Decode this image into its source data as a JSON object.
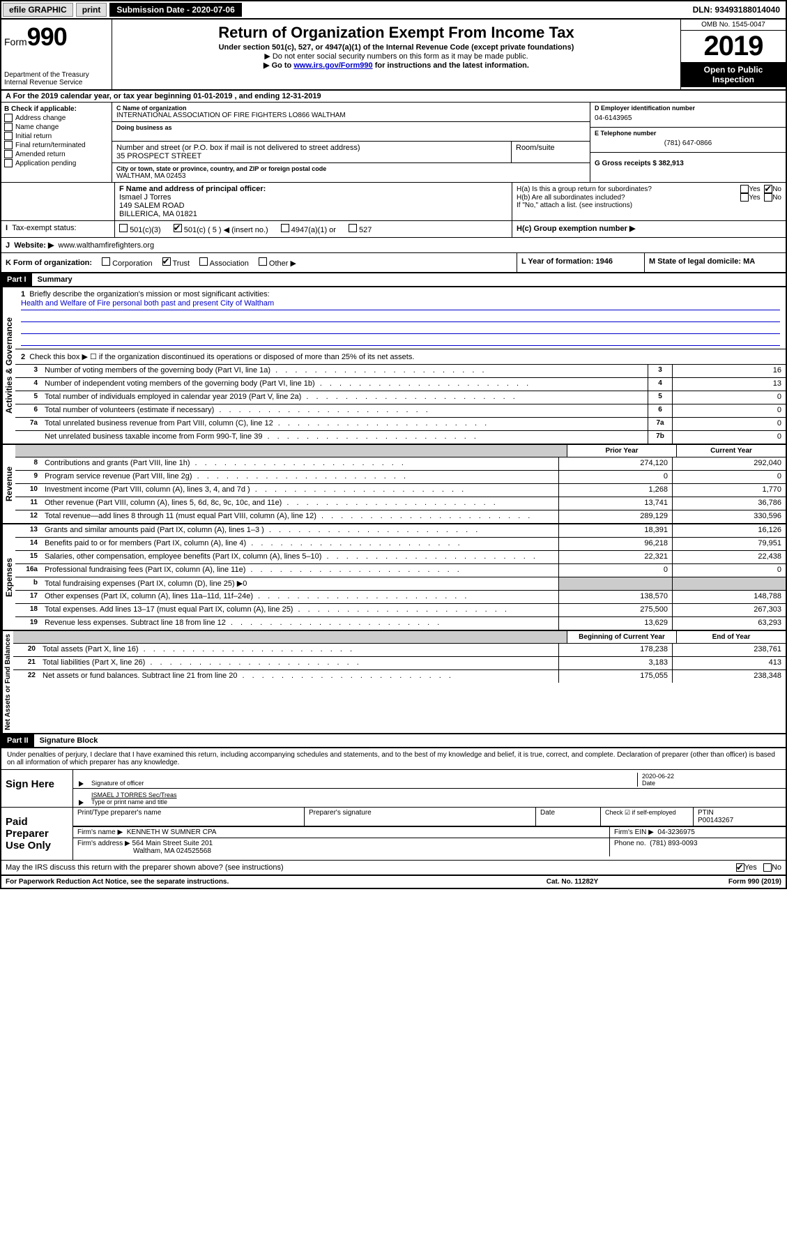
{
  "topbar": {
    "efile": "efile GRAPHIC",
    "print": "print",
    "sub_label": "Submission Date - 2020-07-06",
    "dln": "DLN: 93493188014040"
  },
  "header": {
    "form_prefix": "Form",
    "form_num": "990",
    "dept": "Department of the Treasury",
    "irs": "Internal Revenue Service",
    "title": "Return of Organization Exempt From Income Tax",
    "subtitle": "Under section 501(c), 527, or 4947(a)(1) of the Internal Revenue Code (except private foundations)",
    "line1": "▶ Do not enter social security numbers on this form as it may be made public.",
    "line2_pre": "▶ Go to ",
    "line2_link": "www.irs.gov/Form990",
    "line2_post": " for instructions and the latest information.",
    "omb": "OMB No. 1545-0047",
    "year": "2019",
    "open": "Open to Public Inspection"
  },
  "section_a": {
    "a_text": "A For the 2019 calendar year, or tax year beginning 01-01-2019    , and ending 12-31-2019",
    "b_label": "B Check if applicable:",
    "b_items": [
      "Address change",
      "Name change",
      "Initial return",
      "Final return/terminated",
      "Amended return",
      "Application pending"
    ],
    "c_name_label": "C Name of organization",
    "c_name": "INTERNATIONAL ASSOCIATION OF FIRE FIGHTERS LO866 WALTHAM",
    "dba_label": "Doing business as",
    "addr_label": "Number and street (or P.O. box if mail is not delivered to street address)",
    "addr": "35 PROSPECT STREET",
    "room_label": "Room/suite",
    "city_label": "City or town, state or province, country, and ZIP or foreign postal code",
    "city": "WALTHAM, MA  02453",
    "d_label": "D Employer identification number",
    "d_ein": "04-6143965",
    "e_label": "E Telephone number",
    "e_phone": "(781) 647-0866",
    "g_label": "G Gross receipts $ 382,913",
    "f_label": "F  Name and address of principal officer:",
    "f_name": "Ismael J Torres",
    "f_addr1": "149 SALEM ROAD",
    "f_addr2": "BILLERICA, MA  01821",
    "ha": "H(a)  Is this a group return for subordinates?",
    "hb": "H(b)  Are all subordinates included?",
    "hb_note": "If \"No,\" attach a list. (see instructions)",
    "hc": "H(c)  Group exemption number ▶",
    "yes": "Yes",
    "no": "No",
    "tax_exempt": "Tax-exempt status:",
    "s501c3": "501(c)(3)",
    "s501c": "501(c) ( 5 ) ◀ (insert no.)",
    "s4947": "4947(a)(1) or",
    "s527": "527",
    "website_label": "Website: ▶",
    "website": "www.walthamfirefighters.org",
    "k_label": "K Form of organization:",
    "k_corp": "Corporation",
    "k_trust": "Trust",
    "k_assoc": "Association",
    "k_other": "Other ▶",
    "l_label": "L Year of formation: 1946",
    "m_label": "M State of legal domicile: MA"
  },
  "part1": {
    "header": "Part I",
    "title": "Summary",
    "q1_label": "1",
    "q1": "Briefly describe the organization's mission or most significant activities:",
    "mission": "Health and Welfare of Fire personal both past and present City of Waltham",
    "q2_label": "2",
    "q2": "Check this box ▶ ☐  if the organization discontinued its operations or disposed of more than 25% of its net assets.",
    "gov_label": "Activities & Governance",
    "rev_label": "Revenue",
    "exp_label": "Expenses",
    "net_label": "Net Assets or Fund Balances",
    "prior": "Prior Year",
    "current": "Current Year",
    "begin": "Beginning of Current Year",
    "end": "End of Year",
    "rows_gov": [
      {
        "n": "3",
        "d": "Number of voting members of the governing body (Part VI, line 1a)",
        "nc": "3",
        "v": "16"
      },
      {
        "n": "4",
        "d": "Number of independent voting members of the governing body (Part VI, line 1b)",
        "nc": "4",
        "v": "13"
      },
      {
        "n": "5",
        "d": "Total number of individuals employed in calendar year 2019 (Part V, line 2a)",
        "nc": "5",
        "v": "0"
      },
      {
        "n": "6",
        "d": "Total number of volunteers (estimate if necessary)",
        "nc": "6",
        "v": "0"
      },
      {
        "n": "7a",
        "d": "Total unrelated business revenue from Part VIII, column (C), line 12",
        "nc": "7a",
        "v": "0"
      },
      {
        "n": "",
        "d": "Net unrelated business taxable income from Form 990-T, line 39",
        "nc": "7b",
        "v": "0"
      }
    ],
    "rows_rev": [
      {
        "n": "8",
        "d": "Contributions and grants (Part VIII, line 1h)",
        "p": "274,120",
        "c": "292,040"
      },
      {
        "n": "9",
        "d": "Program service revenue (Part VIII, line 2g)",
        "p": "0",
        "c": "0"
      },
      {
        "n": "10",
        "d": "Investment income (Part VIII, column (A), lines 3, 4, and 7d )",
        "p": "1,268",
        "c": "1,770"
      },
      {
        "n": "11",
        "d": "Other revenue (Part VIII, column (A), lines 5, 6d, 8c, 9c, 10c, and 11e)",
        "p": "13,741",
        "c": "36,786"
      },
      {
        "n": "12",
        "d": "Total revenue—add lines 8 through 11 (must equal Part VIII, column (A), line 12)",
        "p": "289,129",
        "c": "330,596"
      }
    ],
    "rows_exp": [
      {
        "n": "13",
        "d": "Grants and similar amounts paid (Part IX, column (A), lines 1–3 )",
        "p": "18,391",
        "c": "16,126"
      },
      {
        "n": "14",
        "d": "Benefits paid to or for members (Part IX, column (A), line 4)",
        "p": "96,218",
        "c": "79,951"
      },
      {
        "n": "15",
        "d": "Salaries, other compensation, employee benefits (Part IX, column (A), lines 5–10)",
        "p": "22,321",
        "c": "22,438"
      },
      {
        "n": "16a",
        "d": "Professional fundraising fees (Part IX, column (A), line 11e)",
        "p": "0",
        "c": "0"
      },
      {
        "n": "b",
        "d": "Total fundraising expenses (Part IX, column (D), line 25) ▶0",
        "p": "",
        "c": "",
        "shaded": true
      },
      {
        "n": "17",
        "d": "Other expenses (Part IX, column (A), lines 11a–11d, 11f–24e)",
        "p": "138,570",
        "c": "148,788"
      },
      {
        "n": "18",
        "d": "Total expenses. Add lines 13–17 (must equal Part IX, column (A), line 25)",
        "p": "275,500",
        "c": "267,303"
      },
      {
        "n": "19",
        "d": "Revenue less expenses. Subtract line 18 from line 12",
        "p": "13,629",
        "c": "63,293"
      }
    ],
    "rows_net": [
      {
        "n": "20",
        "d": "Total assets (Part X, line 16)",
        "p": "178,238",
        "c": "238,761"
      },
      {
        "n": "21",
        "d": "Total liabilities (Part X, line 26)",
        "p": "3,183",
        "c": "413"
      },
      {
        "n": "22",
        "d": "Net assets or fund balances. Subtract line 21 from line 20",
        "p": "175,055",
        "c": "238,348"
      }
    ]
  },
  "part2": {
    "header": "Part II",
    "title": "Signature Block",
    "decl": "Under penalties of perjury, I declare that I have examined this return, including accompanying schedules and statements, and to the best of my knowledge and belief, it is true, correct, and complete. Declaration of preparer (other than officer) is based on all information of which preparer has any knowledge.",
    "sign_here": "Sign Here",
    "sig_officer": "Signature of officer",
    "sig_date": "2020-06-22",
    "date_label": "Date",
    "officer_name": "ISMAEL J TORRES Sec/Treas",
    "type_name": "Type or print name and title",
    "paid": "Paid Preparer Use Only",
    "prep_name_label": "Print/Type preparer's name",
    "prep_sig_label": "Preparer's signature",
    "prep_date_label": "Date",
    "self_emp": "Check ☑ if self-employed",
    "ptin_label": "PTIN",
    "ptin": "P00143267",
    "firm_name_label": "Firm's name      ▶",
    "firm_name": "KENNETH W SUMNER CPA",
    "firm_ein_label": "Firm's EIN ▶",
    "firm_ein": "04-3236975",
    "firm_addr_label": "Firm's address ▶",
    "firm_addr": "564 Main Street Suite 201",
    "firm_city": "Waltham, MA  024525568",
    "phone_label": "Phone no.",
    "phone": "(781) 893-0093",
    "discuss": "May the IRS discuss this return with the preparer shown above? (see instructions)",
    "yes": "Yes",
    "no": "No"
  },
  "footer": {
    "left": "For Paperwork Reduction Act Notice, see the separate instructions.",
    "mid": "Cat. No. 11282Y",
    "right": "Form 990 (2019)"
  }
}
